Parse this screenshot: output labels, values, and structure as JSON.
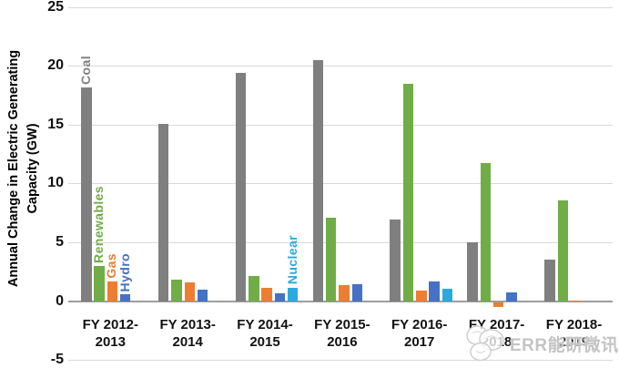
{
  "chart_data": {
    "type": "bar",
    "title": "",
    "ylabel": "Annual Change in Electric Generating Capacity (GW)",
    "ylabel_line1": "Annual Change in Electric Generating",
    "ylabel_line2": "Capacity (GW)",
    "ylim": [
      -5,
      25
    ],
    "yticks": [
      25,
      20,
      15,
      10,
      5,
      0,
      -5
    ],
    "grid": true,
    "legend_position": "inline-labels",
    "categories": [
      "FY 2012-2013",
      "FY 2013-2014",
      "FY 2014-2015",
      "FY 2015-2016",
      "FY 2016-2017",
      "FY 2017-2018",
      "FY 2018-2019"
    ],
    "category_lines": [
      [
        "FY 2012-",
        "2013"
      ],
      [
        "FY 2013-",
        "2014"
      ],
      [
        "FY 2014-",
        "2015"
      ],
      [
        "FY 2015-",
        "2016"
      ],
      [
        "FY 2016-",
        "2017"
      ],
      [
        "FY 2017-",
        "2018"
      ],
      [
        "FY 2018-",
        "2019"
      ]
    ],
    "series": [
      {
        "name": "Coal",
        "color": "#7F7F7F",
        "values": [
          18.2,
          15.1,
          19.4,
          20.5,
          7.0,
          5.0,
          3.6
        ]
      },
      {
        "name": "Renewables",
        "color": "#70AD47",
        "values": [
          3.0,
          1.9,
          2.2,
          7.1,
          18.5,
          11.8,
          8.6
        ]
      },
      {
        "name": "Gas",
        "color": "#ED7D31",
        "values": [
          1.7,
          1.6,
          1.2,
          1.4,
          0.9,
          -0.4,
          0.1
        ]
      },
      {
        "name": "Hydro",
        "color": "#4472C4",
        "values": [
          0.6,
          1.0,
          0.7,
          1.5,
          1.7,
          0.8,
          null
        ]
      },
      {
        "name": "Nuclear",
        "color": "#2BA9DF",
        "values": [
          null,
          null,
          1.2,
          null,
          1.1,
          null,
          null
        ]
      }
    ],
    "inline_labels": [
      {
        "series": "Coal",
        "group": 0
      },
      {
        "series": "Renewables",
        "group": 0
      },
      {
        "series": "Gas",
        "group": 0
      },
      {
        "series": "Hydro",
        "group": 0
      },
      {
        "series": "Nuclear",
        "group": 2
      }
    ]
  },
  "watermark": {
    "logo": "scribble-flower-logo",
    "text": "ERR能研微讯"
  }
}
